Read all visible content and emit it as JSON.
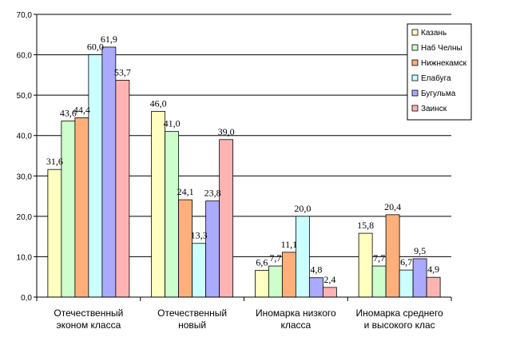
{
  "chart_data": {
    "type": "bar",
    "categories": [
      [
        "Отечественный",
        "эконом класса"
      ],
      [
        "Отечественный",
        "новый"
      ],
      [
        "Иномарка низкого",
        "класса"
      ],
      [
        "Иномарка среднего",
        "и высокого клас"
      ]
    ],
    "series": [
      {
        "name": "Казань",
        "color": "#ffffc0",
        "values": [
          31.6,
          46.0,
          6.6,
          15.8
        ],
        "labels": [
          "31,6",
          "46,0",
          "6,6",
          "15,8"
        ]
      },
      {
        "name": "Наб Челны",
        "color": "#ccffcc",
        "values": [
          43.6,
          41.0,
          7.7,
          7.7
        ],
        "labels": [
          "43,6",
          "41,0",
          "7,7",
          "7,7"
        ]
      },
      {
        "name": "Нижнекамск",
        "color": "#ffb07a",
        "values": [
          44.4,
          24.1,
          11.1,
          20.4
        ],
        "labels": [
          "44,4",
          "24,1",
          "11,1",
          "20,4"
        ]
      },
      {
        "name": "Елабуга",
        "color": "#ccffff",
        "values": [
          60.0,
          13.3,
          20.0,
          6.7
        ],
        "labels": [
          "60,0",
          "13,3",
          "20,0",
          "6,7"
        ]
      },
      {
        "name": "Бугульма",
        "color": "#aaaaff",
        "values": [
          61.9,
          23.8,
          4.8,
          9.5
        ],
        "labels": [
          "61,9",
          "23,8",
          "4,8",
          "9,5"
        ]
      },
      {
        "name": "Заинск",
        "color": "#ffb3b3",
        "values": [
          53.7,
          39.0,
          2.4,
          4.9
        ],
        "labels": [
          "53,7",
          "39,0",
          "2,4",
          "4,9"
        ]
      }
    ],
    "ylim": [
      0,
      70
    ],
    "yticks": [
      "0,0",
      "10,0",
      "20,0",
      "30,0",
      "40,0",
      "50,0",
      "60,0",
      "70,0"
    ],
    "grid": true,
    "legend": "top-right",
    "title": "",
    "xlabel": "",
    "ylabel": ""
  }
}
